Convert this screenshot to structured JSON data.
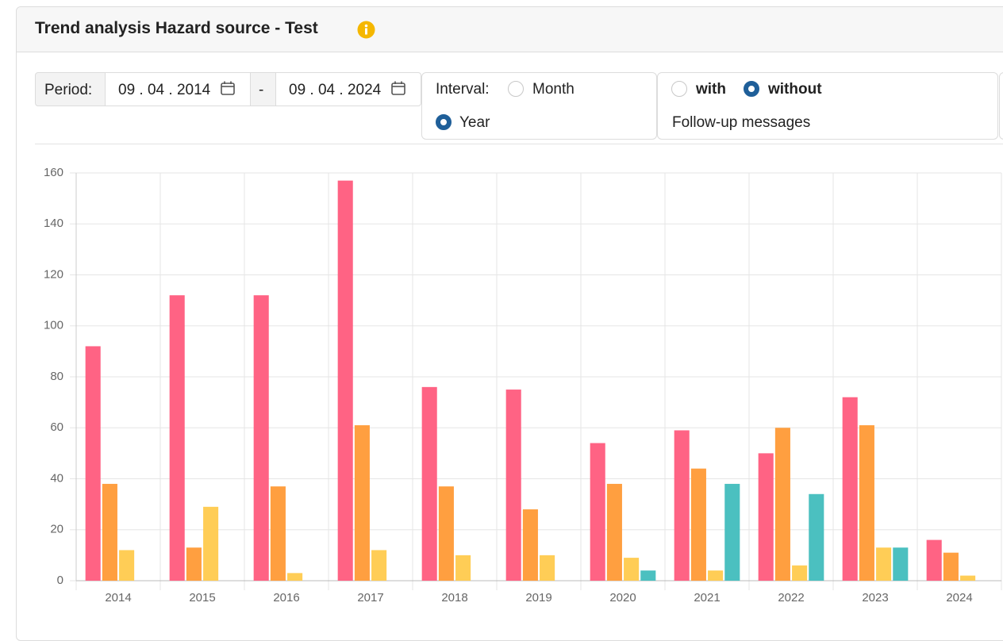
{
  "header": {
    "title": "Trend analysis Hazard source - Test"
  },
  "filters": {
    "period_label": "Period:",
    "start_date": "09 . 04 . 2014",
    "separator": "-",
    "end_date": "09 . 04 . 2024",
    "interval_label": "Interval:",
    "interval_options": [
      "Month",
      "Year"
    ],
    "follow_up_options": [
      "with",
      "without"
    ],
    "follow_up_label": "Follow-up messages"
  },
  "chart_data": {
    "type": "bar",
    "categories": [
      "2014",
      "2015",
      "2016",
      "2017",
      "2018",
      "2019",
      "2020",
      "2021",
      "2022",
      "2023",
      "2024"
    ],
    "series": [
      {
        "color": "#ff6384",
        "values": [
          92,
          112,
          112,
          157,
          76,
          75,
          54,
          59,
          50,
          72,
          16
        ]
      },
      {
        "color": "#ff9f40",
        "values": [
          38,
          13,
          37,
          61,
          37,
          28,
          38,
          44,
          60,
          61,
          11
        ]
      },
      {
        "color": "#ffcd56",
        "values": [
          12,
          29,
          3,
          12,
          10,
          10,
          9,
          4,
          6,
          13,
          2
        ]
      },
      {
        "color": "#4bc0c0",
        "values": [
          0,
          0,
          0,
          0,
          0,
          0,
          4,
          38,
          34,
          13,
          0
        ]
      }
    ],
    "ylim": [
      0,
      160
    ],
    "yticks": [
      0,
      20,
      40,
      60,
      80,
      100,
      120,
      140,
      160
    ],
    "grid": true
  }
}
